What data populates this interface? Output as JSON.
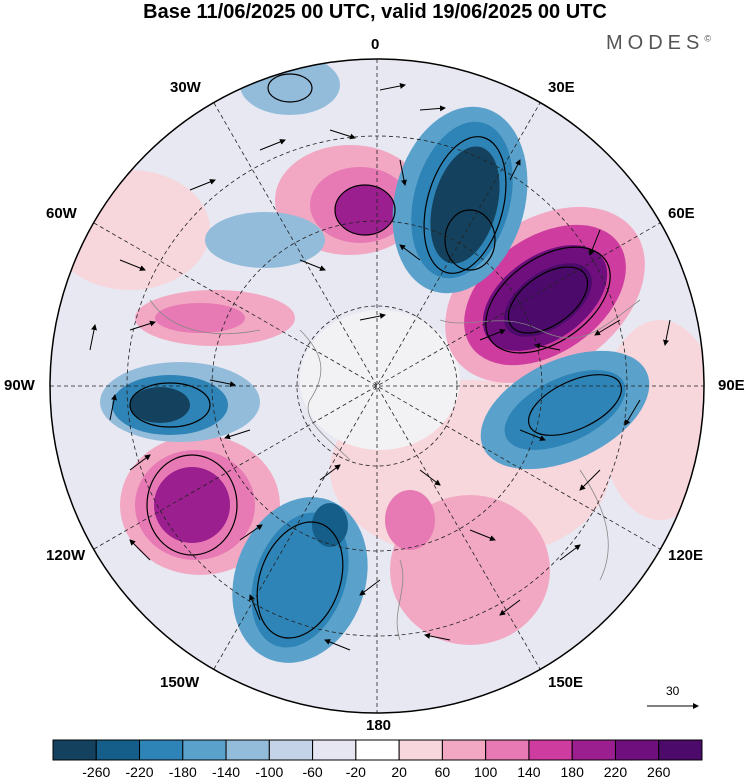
{
  "header": {
    "title": "Base 11/06/2025 00 UTC, valid 19/06/2025 00 UTC",
    "brand": "MODES",
    "brand_mark": "©"
  },
  "map": {
    "projection": "polar-stereographic",
    "hemisphere": "north",
    "longitude_labels": {
      "top": "0",
      "lon30e": "30E",
      "lon60e": "60E",
      "lon90e": "90E",
      "lon120e": "120E",
      "lon150e": "150E",
      "bottom": "180",
      "lon150w": "150W",
      "lon120w": "120W",
      "lon90w": "90W",
      "lon60w": "60W",
      "lon30w": "30W"
    },
    "reference_vector": "30"
  },
  "colorbar": {
    "colors": [
      "#14425e",
      "#155e8a",
      "#2e84b6",
      "#5aa2cc",
      "#93bcdb",
      "#c4d3e8",
      "#e6e6f2",
      "#ffffff",
      "#f7d6dc",
      "#f2a8c3",
      "#e779b4",
      "#cf3c9f",
      "#9c1f8f",
      "#6f0f7e",
      "#4c0a6b"
    ],
    "ticks": [
      "-260",
      "-220",
      "-180",
      "-140",
      "-100",
      "-60",
      "-20",
      "20",
      "60",
      "100",
      "140",
      "180",
      "220",
      "260"
    ]
  }
}
